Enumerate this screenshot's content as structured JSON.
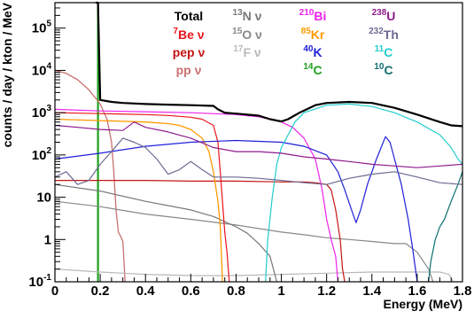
{
  "chart_data": {
    "type": "line",
    "title": "",
    "xlabel": "Energy (MeV)",
    "ylabel": "counts / day / kton / MeV",
    "xlim": [
      0,
      1.8
    ],
    "ylim": [
      0.1,
      400000
    ],
    "yscale": "log",
    "grid": false,
    "legend_placement": "top",
    "x_ticks": [
      {
        "v": 0,
        "label": "0"
      },
      {
        "v": 0.2,
        "label": "0.2"
      },
      {
        "v": 0.4,
        "label": "0.4"
      },
      {
        "v": 0.6,
        "label": "0.6"
      },
      {
        "v": 0.8,
        "label": "0.8"
      },
      {
        "v": 1.0,
        "label": "1"
      },
      {
        "v": 1.2,
        "label": "1.2"
      },
      {
        "v": 1.4,
        "label": "1.4"
      },
      {
        "v": 1.6,
        "label": "1.6"
      },
      {
        "v": 1.8,
        "label": "1.8"
      }
    ],
    "y_ticks": [
      {
        "v": 100000,
        "base": "10",
        "exp": "5",
        "label": ""
      },
      {
        "v": 10000,
        "base": "10",
        "exp": "4",
        "label": ""
      },
      {
        "v": 1000,
        "base": "10",
        "exp": "3",
        "label": ""
      },
      {
        "v": 100,
        "base": "10",
        "exp": "2",
        "label": ""
      },
      {
        "v": 10,
        "base": "",
        "exp": "",
        "label": "10"
      },
      {
        "v": 1,
        "base": "",
        "exp": "",
        "label": "1"
      },
      {
        "v": 0.1,
        "base": "10",
        "exp": "-1",
        "label": ""
      }
    ],
    "legend": [
      {
        "sup": "",
        "name": "Total",
        "color": "#000000",
        "col": 0,
        "row": 0
      },
      {
        "sup": "7",
        "name": "Be ν",
        "color": "#e8141c",
        "col": 0,
        "row": 1
      },
      {
        "sup": "",
        "name": "pep ν",
        "color": "#c41414",
        "col": 0,
        "row": 2
      },
      {
        "sup": "",
        "name": "pp ν",
        "color": "#c97070",
        "col": 0,
        "row": 3
      },
      {
        "sup": "13",
        "name": "N ν",
        "color": "#777777",
        "col": 1,
        "row": 0
      },
      {
        "sup": "15",
        "name": "O ν",
        "color": "#888888",
        "col": 1,
        "row": 1
      },
      {
        "sup": "17",
        "name": "F ν",
        "color": "#b9b9b9",
        "col": 1,
        "row": 2
      },
      {
        "sup": "210",
        "name": "Bi",
        "color": "#ee22ee",
        "col": 2,
        "row": 0
      },
      {
        "sup": "85",
        "name": "Kr",
        "color": "#ff9900",
        "col": 2,
        "row": 1
      },
      {
        "sup": "40",
        "name": "K",
        "color": "#1f1fd8",
        "col": 2,
        "row": 2
      },
      {
        "sup": "14",
        "name": "C",
        "color": "#1ea11e",
        "col": 2,
        "row": 3
      },
      {
        "sup": "238",
        "name": "U",
        "color": "#8e1a8e",
        "col": 3,
        "row": 0
      },
      {
        "sup": "232",
        "name": "Th",
        "color": "#6b6b93",
        "col": 3,
        "row": 1
      },
      {
        "sup": "11",
        "name": "C",
        "color": "#22cccc",
        "col": 3,
        "row": 2
      },
      {
        "sup": "10",
        "name": "C",
        "color": "#0e6f6f",
        "col": 3,
        "row": 3
      }
    ],
    "series": [
      {
        "name": "14C",
        "color": "#1ea11e",
        "width": 2.2,
        "points": [
          [
            0.19,
            400000
          ],
          [
            0.19,
            0.1
          ]
        ]
      },
      {
        "name": "pp ν",
        "color": "#c97070",
        "width": 1.3,
        "points": [
          [
            0.0,
            10000
          ],
          [
            0.05,
            8500
          ],
          [
            0.1,
            6000
          ],
          [
            0.15,
            3500
          ],
          [
            0.2,
            1600
          ],
          [
            0.23,
            700
          ],
          [
            0.25,
            200
          ],
          [
            0.26,
            40
          ],
          [
            0.27,
            5
          ],
          [
            0.28,
            1.5
          ],
          [
            0.29,
            1.2
          ],
          [
            0.3,
            0.9
          ],
          [
            0.31,
            0.1
          ]
        ]
      },
      {
        "name": "17F ν",
        "color": "#b9b9b9",
        "width": 1.2,
        "points": [
          [
            0.0,
            0.2
          ],
          [
            0.2,
            0.17
          ],
          [
            0.4,
            0.15
          ],
          [
            0.6,
            0.14
          ],
          [
            0.8,
            0.14
          ],
          [
            1.0,
            0.15
          ],
          [
            1.2,
            0.16
          ],
          [
            1.4,
            0.17
          ],
          [
            1.5,
            0.17
          ],
          [
            1.6,
            0.17
          ],
          [
            1.7,
            0.17
          ],
          [
            1.74,
            0.15
          ],
          [
            1.76,
            0.1
          ]
        ]
      },
      {
        "name": "15O ν",
        "color": "#888888",
        "width": 1.2,
        "points": [
          [
            0.0,
            8
          ],
          [
            0.2,
            6
          ],
          [
            0.4,
            4
          ],
          [
            0.6,
            3
          ],
          [
            0.8,
            2.2
          ],
          [
            1.0,
            1.5
          ],
          [
            1.1,
            1.3
          ],
          [
            1.2,
            1.1
          ],
          [
            1.3,
            1.0
          ],
          [
            1.4,
            0.9
          ],
          [
            1.5,
            0.8
          ],
          [
            1.55,
            0.8
          ],
          [
            1.6,
            0.5
          ],
          [
            1.65,
            0.2
          ],
          [
            1.67,
            0.1
          ]
        ]
      },
      {
        "name": "13N ν",
        "color": "#777777",
        "width": 1.2,
        "points": [
          [
            0.0,
            20
          ],
          [
            0.2,
            14
          ],
          [
            0.4,
            8
          ],
          [
            0.6,
            5
          ],
          [
            0.7,
            3.5
          ],
          [
            0.8,
            2
          ],
          [
            0.85,
            1.4
          ],
          [
            0.9,
            0.8
          ],
          [
            0.95,
            0.4
          ],
          [
            0.98,
            0.1
          ]
        ]
      },
      {
        "name": "pep ν",
        "color": "#c41414",
        "width": 1.2,
        "points": [
          [
            0.0,
            25
          ],
          [
            0.2,
            25
          ],
          [
            0.4,
            25
          ],
          [
            0.6,
            24
          ],
          [
            0.8,
            24
          ],
          [
            1.0,
            23
          ],
          [
            1.1,
            23
          ],
          [
            1.15,
            22
          ],
          [
            1.2,
            20
          ],
          [
            1.22,
            15
          ],
          [
            1.24,
            5
          ],
          [
            1.26,
            1
          ],
          [
            1.27,
            0.2
          ],
          [
            1.28,
            0.1
          ]
        ]
      },
      {
        "name": "7Be ν",
        "color": "#e8141c",
        "width": 1.2,
        "points": [
          [
            0.0,
            1000
          ],
          [
            0.2,
            950
          ],
          [
            0.4,
            900
          ],
          [
            0.5,
            860
          ],
          [
            0.6,
            780
          ],
          [
            0.65,
            700
          ],
          [
            0.7,
            500
          ],
          [
            0.72,
            200
          ],
          [
            0.73,
            40
          ],
          [
            0.74,
            8
          ],
          [
            0.75,
            1.5
          ],
          [
            0.76,
            0.5
          ],
          [
            0.77,
            0.1
          ]
        ]
      },
      {
        "name": "85Kr",
        "color": "#ff9900",
        "width": 1.3,
        "points": [
          [
            0.0,
            700
          ],
          [
            0.2,
            650
          ],
          [
            0.4,
            600
          ],
          [
            0.5,
            550
          ],
          [
            0.55,
            500
          ],
          [
            0.6,
            400
          ],
          [
            0.65,
            250
          ],
          [
            0.68,
            120
          ],
          [
            0.7,
            40
          ],
          [
            0.72,
            8
          ],
          [
            0.73,
            2
          ],
          [
            0.735,
            0.5
          ],
          [
            0.74,
            0.1
          ]
        ]
      },
      {
        "name": "210Bi",
        "color": "#ee22ee",
        "width": 1.2,
        "points": [
          [
            0.0,
            1200
          ],
          [
            0.2,
            1100
          ],
          [
            0.4,
            1050
          ],
          [
            0.6,
            1000
          ],
          [
            0.8,
            900
          ],
          [
            0.9,
            800
          ],
          [
            1.0,
            600
          ],
          [
            1.05,
            450
          ],
          [
            1.1,
            250
          ],
          [
            1.15,
            80
          ],
          [
            1.18,
            15
          ],
          [
            1.2,
            3
          ],
          [
            1.22,
            1
          ],
          [
            1.24,
            0.4
          ],
          [
            1.25,
            0.1
          ]
        ]
      },
      {
        "name": "40K",
        "color": "#1f1fd8",
        "width": 1.2,
        "points": [
          [
            0.0,
            80
          ],
          [
            0.2,
            110
          ],
          [
            0.4,
            160
          ],
          [
            0.6,
            200
          ],
          [
            0.8,
            220
          ],
          [
            1.0,
            200
          ],
          [
            1.1,
            160
          ],
          [
            1.2,
            100
          ],
          [
            1.25,
            40
          ],
          [
            1.28,
            15
          ],
          [
            1.31,
            5
          ],
          [
            1.33,
            2.5
          ],
          [
            1.35,
            5
          ],
          [
            1.38,
            20
          ],
          [
            1.42,
            80
          ],
          [
            1.45,
            200
          ],
          [
            1.46,
            270
          ],
          [
            1.48,
            200
          ],
          [
            1.5,
            80
          ],
          [
            1.53,
            20
          ],
          [
            1.56,
            3
          ],
          [
            1.58,
            0.6
          ],
          [
            1.6,
            0.1
          ]
        ]
      },
      {
        "name": "11C",
        "color": "#22cccc",
        "width": 1.2,
        "points": [
          [
            0.93,
            0.1
          ],
          [
            0.94,
            1
          ],
          [
            0.96,
            10
          ],
          [
            0.98,
            60
          ],
          [
            1.0,
            150
          ],
          [
            1.03,
            300
          ],
          [
            1.06,
            600
          ],
          [
            1.1,
            1000
          ],
          [
            1.2,
            1500
          ],
          [
            1.3,
            1600
          ],
          [
            1.4,
            1400
          ],
          [
            1.5,
            1000
          ],
          [
            1.6,
            600
          ],
          [
            1.7,
            300
          ],
          [
            1.75,
            150
          ],
          [
            1.78,
            80
          ],
          [
            1.8,
            60
          ]
        ]
      },
      {
        "name": "10C",
        "color": "#0e6f6f",
        "width": 1.2,
        "points": [
          [
            1.65,
            0.1
          ],
          [
            1.66,
            0.3
          ],
          [
            1.68,
            1
          ],
          [
            1.7,
            2
          ],
          [
            1.72,
            3
          ],
          [
            1.75,
            8
          ],
          [
            1.78,
            20
          ],
          [
            1.8,
            40
          ]
        ]
      },
      {
        "name": "232Th",
        "color": "#6b6b93",
        "width": 1.2,
        "points": [
          [
            0.0,
            30
          ],
          [
            0.05,
            40
          ],
          [
            0.1,
            20
          ],
          [
            0.15,
            25
          ],
          [
            0.2,
            60
          ],
          [
            0.25,
            120
          ],
          [
            0.3,
            250
          ],
          [
            0.35,
            200
          ],
          [
            0.4,
            150
          ],
          [
            0.45,
            80
          ],
          [
            0.5,
            35
          ],
          [
            0.55,
            45
          ],
          [
            0.6,
            70
          ],
          [
            0.65,
            45
          ],
          [
            0.7,
            30
          ],
          [
            0.8,
            30
          ],
          [
            0.9,
            28
          ],
          [
            1.0,
            25
          ],
          [
            1.1,
            22
          ],
          [
            1.2,
            20
          ],
          [
            1.3,
            28
          ],
          [
            1.4,
            35
          ],
          [
            1.5,
            40
          ],
          [
            1.6,
            30
          ],
          [
            1.7,
            22
          ],
          [
            1.8,
            20
          ]
        ]
      },
      {
        "name": "238U",
        "color": "#8e1a8e",
        "width": 1.2,
        "points": [
          [
            0.0,
            500
          ],
          [
            0.1,
            450
          ],
          [
            0.2,
            400
          ],
          [
            0.3,
            380
          ],
          [
            0.35,
            600
          ],
          [
            0.4,
            450
          ],
          [
            0.5,
            350
          ],
          [
            0.6,
            250
          ],
          [
            0.7,
            150
          ],
          [
            0.8,
            120
          ],
          [
            0.9,
            120
          ],
          [
            1.0,
            110
          ],
          [
            1.1,
            90
          ],
          [
            1.2,
            80
          ],
          [
            1.3,
            70
          ],
          [
            1.4,
            60
          ],
          [
            1.5,
            55
          ],
          [
            1.6,
            50
          ],
          [
            1.7,
            55
          ],
          [
            1.8,
            60
          ]
        ]
      },
      {
        "name": "Total",
        "color": "#000000",
        "width": 2.2,
        "points": [
          [
            0.18,
            400000
          ],
          [
            0.19,
            400000
          ],
          [
            0.2,
            2000
          ],
          [
            0.25,
            1800
          ],
          [
            0.3,
            1700
          ],
          [
            0.4,
            1600
          ],
          [
            0.5,
            1550
          ],
          [
            0.6,
            1500
          ],
          [
            0.7,
            1450
          ],
          [
            0.72,
            1200
          ],
          [
            0.75,
            1000
          ],
          [
            0.8,
            950
          ],
          [
            0.9,
            850
          ],
          [
            0.95,
            700
          ],
          [
            1.0,
            620
          ],
          [
            1.03,
            700
          ],
          [
            1.08,
            1000
          ],
          [
            1.15,
            1500
          ],
          [
            1.2,
            1700
          ],
          [
            1.3,
            1800
          ],
          [
            1.4,
            1700
          ],
          [
            1.5,
            1300
          ],
          [
            1.6,
            900
          ],
          [
            1.7,
            600
          ],
          [
            1.75,
            500
          ],
          [
            1.8,
            480
          ]
        ]
      }
    ]
  }
}
